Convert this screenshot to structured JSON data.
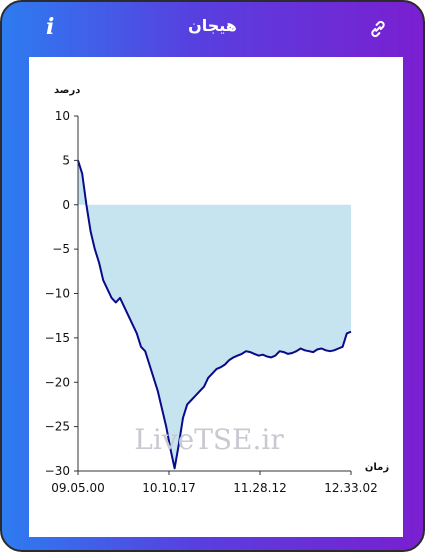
{
  "header": {
    "title": "هیجان",
    "info_icon": "info-icon",
    "link_icon": "link-icon"
  },
  "colors": {
    "gradient_start": "#2d7cf0",
    "gradient_end": "#7a1fd0",
    "line": "#0a0a8a",
    "fill": "#c6e4ef"
  },
  "watermark": "LiveTSE.ir",
  "chart_data": {
    "type": "area",
    "title": "",
    "ylabel": "درصد",
    "xlabel": "زمان",
    "ylim": [
      -30,
      10
    ],
    "yticks": [
      10,
      5,
      0,
      -5,
      -10,
      -15,
      -20,
      -25,
      -30
    ],
    "ytick_labels": [
      "10",
      "5",
      "0",
      "−5",
      "−10",
      "−15",
      "−20",
      "−25",
      "−30"
    ],
    "xtick_labels": [
      "09.05.00",
      "10.10.17",
      "11.28.12",
      "12.33.02"
    ],
    "grid": false,
    "series": [
      {
        "values": [
          5,
          3.5,
          0,
          -3,
          -5,
          -6.5,
          -8.5,
          -9.5,
          -10.5,
          -11,
          -10.5,
          -11.5,
          -12.5,
          -13.5,
          -14.5,
          -16,
          -16.5,
          -18,
          -19.5,
          -21,
          -23,
          -25,
          -27.5,
          -29.7,
          -27,
          -24,
          -22.5,
          -22,
          -21.5,
          -21,
          -20.5,
          -19.5,
          -19,
          -18.5,
          -18.3,
          -18,
          -17.5,
          -17.2,
          -17,
          -16.8,
          -16.5,
          -16.6,
          -16.8,
          -17,
          -16.9,
          -17.1,
          -17.2,
          -17,
          -16.5,
          -16.6,
          -16.8,
          -16.7,
          -16.5,
          -16.2,
          -16.4,
          -16.5,
          -16.6,
          -16.3,
          -16.2,
          -16.4,
          -16.5,
          -16.4,
          -16.2,
          -16.0,
          -14.5,
          -14.3
        ]
      }
    ]
  }
}
